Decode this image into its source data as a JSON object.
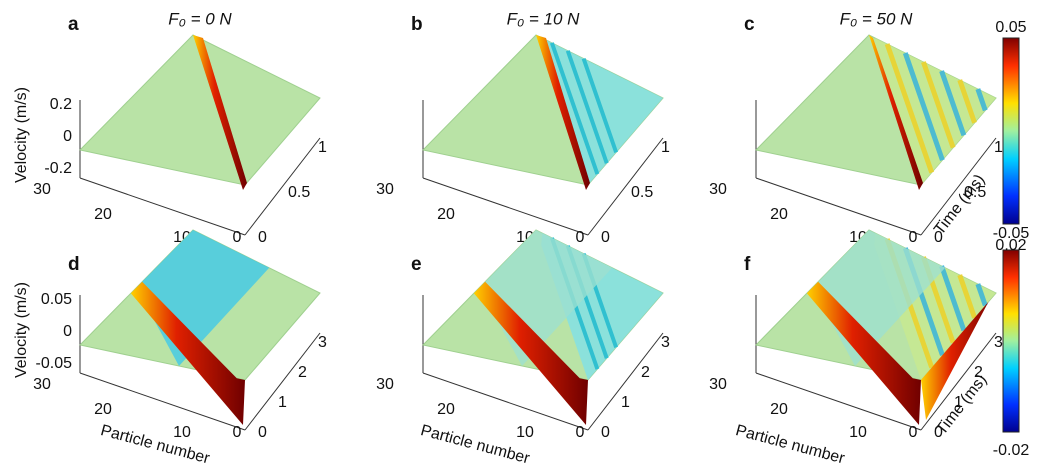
{
  "panels": [
    {
      "label": "a",
      "title": "F₀ = 0 N",
      "velocity_ticks": [
        "0.2",
        "0",
        "-0.2"
      ],
      "particle_ticks": [
        "30",
        "20",
        "10",
        "0"
      ],
      "time_ticks": [
        "0",
        "0.5",
        "1"
      ]
    },
    {
      "label": "b",
      "title": "F₀ = 10 N",
      "particle_ticks": [
        "30",
        "20",
        "10",
        "0"
      ],
      "time_ticks": [
        "0",
        "0.5",
        "1"
      ]
    },
    {
      "label": "c",
      "title": "F₀ = 50 N",
      "particle_ticks": [
        "30",
        "20",
        "10",
        "0"
      ],
      "time_ticks": [
        "0",
        "0.5",
        "1"
      ]
    },
    {
      "label": "d",
      "velocity_ticks": [
        "0.05",
        "0",
        "-0.05"
      ],
      "particle_ticks": [
        "30",
        "20",
        "10",
        "0"
      ],
      "time_ticks": [
        "0",
        "1",
        "2",
        "3"
      ]
    },
    {
      "label": "e",
      "particle_ticks": [
        "30",
        "20",
        "10",
        "0"
      ],
      "time_ticks": [
        "0",
        "1",
        "2",
        "3"
      ]
    },
    {
      "label": "f",
      "particle_ticks": [
        "30",
        "20",
        "10",
        "0"
      ],
      "time_ticks": [
        "0",
        "1",
        "2",
        "3"
      ]
    }
  ],
  "axis_labels": {
    "velocity": "Velocity (m/s)",
    "particle": "Particle number",
    "time": "Time (ms)"
  },
  "colorbars": [
    {
      "max": "0.05",
      "min": "-0.05"
    },
    {
      "max": "0.02",
      "min": "-0.02"
    }
  ]
}
